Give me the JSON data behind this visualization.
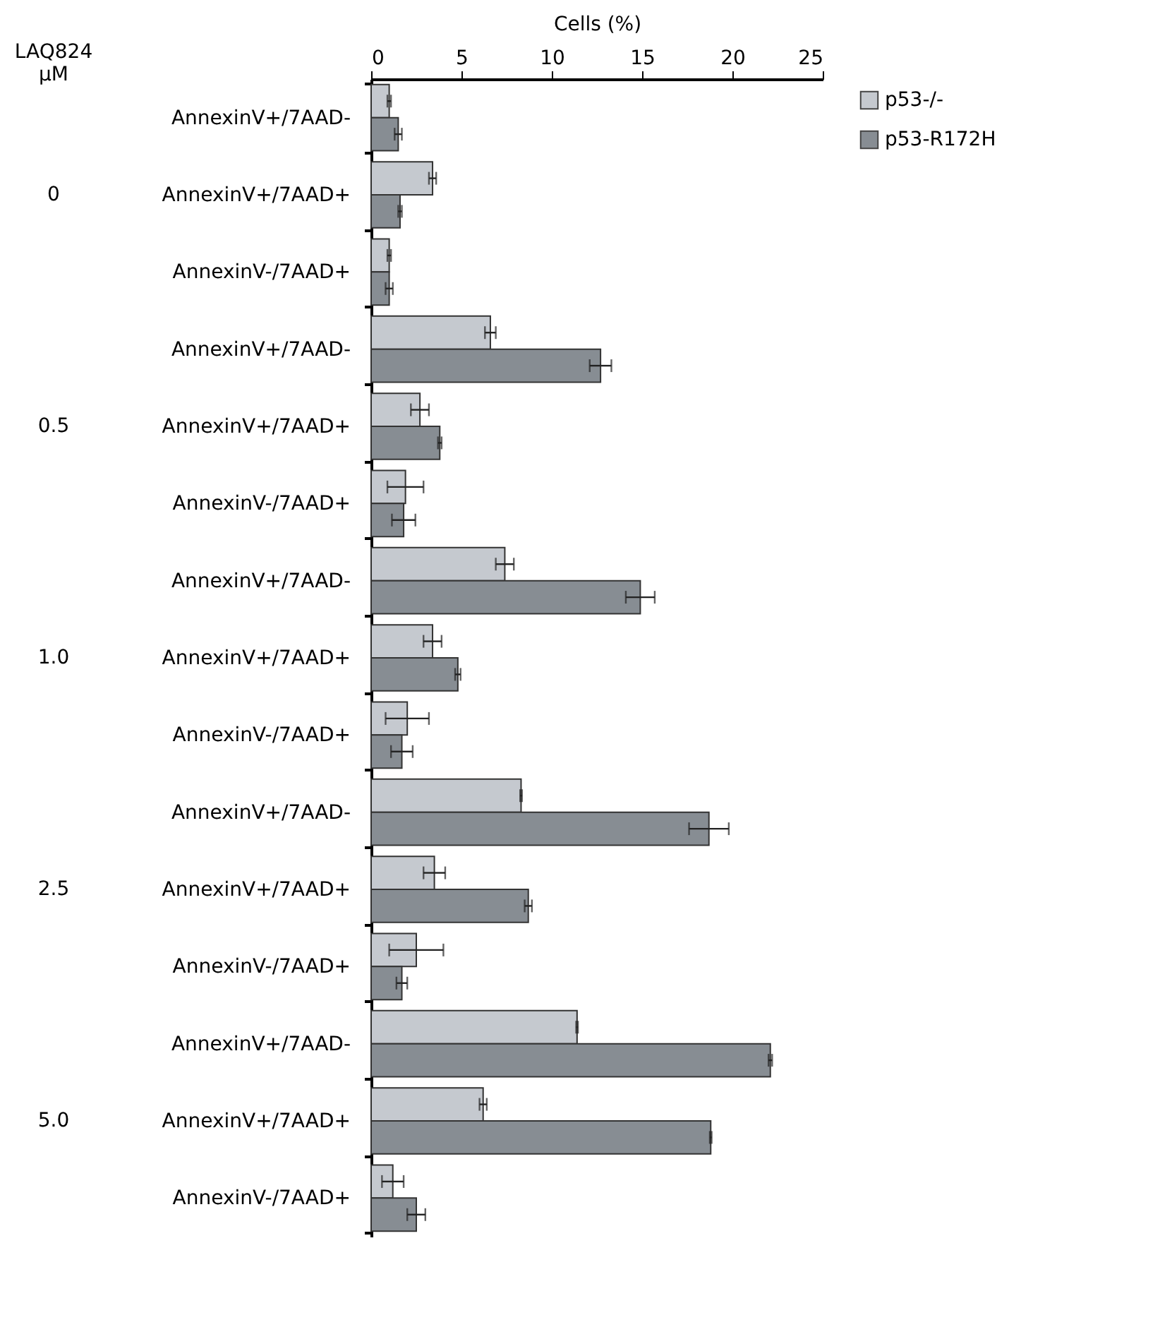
{
  "chart_data": {
    "type": "bar",
    "orientation": "horizontal",
    "xlabel": "Cells (%)",
    "categories": [
      "AnnexinV+/7AAD-",
      "AnnexinV+/7AAD+",
      "AnnexinV-/7AAD+",
      "AnnexinV+/7AAD-",
      "AnnexinV+/7AAD+",
      "AnnexinV-/7AAD+",
      "AnnexinV+/7AAD-",
      "AnnexinV+/7AAD+",
      "AnnexinV-/7AAD+",
      "AnnexinV+/7AAD-",
      "AnnexinV+/7AAD+",
      "AnnexinV-/7AAD+",
      "AnnexinV+/7AAD-",
      "AnnexinV+/7AAD+",
      "AnnexinV-/7AAD+"
    ],
    "series": [
      {
        "name": "p53-/-",
        "color": "#c5c9cf",
        "values": [
          1.0,
          3.4,
          1.0,
          6.6,
          2.7,
          1.9,
          7.4,
          3.4,
          2.0,
          8.3,
          3.5,
          2.5,
          11.4,
          6.2,
          1.2
        ],
        "errors": [
          0.1,
          0.2,
          0.1,
          0.3,
          0.5,
          1.0,
          0.5,
          0.5,
          1.2,
          0.05,
          0.6,
          1.5,
          0.05,
          0.2,
          0.6
        ]
      },
      {
        "name": "p53-R172H",
        "color": "#878d93",
        "values": [
          1.5,
          1.6,
          1.0,
          12.7,
          3.8,
          1.8,
          14.9,
          4.8,
          1.7,
          18.7,
          8.7,
          1.7,
          22.1,
          18.8,
          2.5
        ],
        "errors": [
          0.2,
          0.1,
          0.2,
          0.6,
          0.1,
          0.65,
          0.8,
          0.15,
          0.6,
          1.1,
          0.2,
          0.3,
          0.1,
          0.05,
          0.5
        ]
      }
    ],
    "annotations": [
      "LAQ824 μM",
      "0",
      "0.5",
      "1.0",
      "2.5",
      "5.0"
    ],
    "xlim": [
      0,
      25
    ],
    "xticks": [
      0,
      5,
      10,
      15,
      20,
      25
    ],
    "grid": false,
    "legend": "top right"
  }
}
